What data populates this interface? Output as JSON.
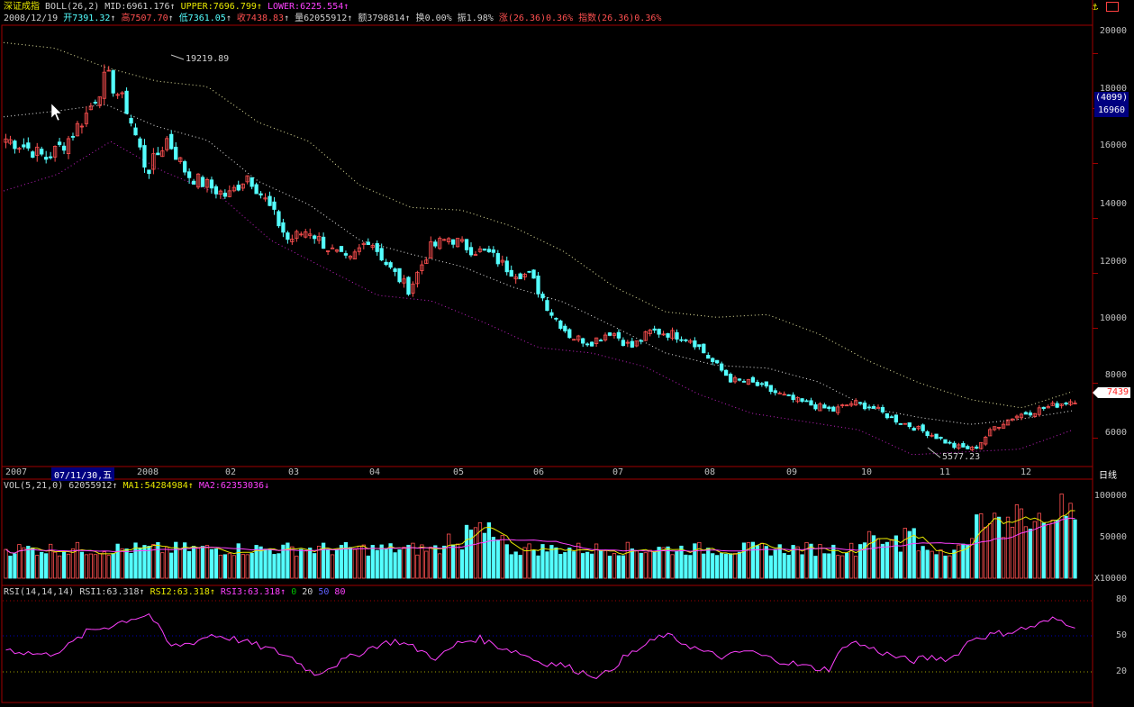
{
  "header": {
    "index_name": "深证成指",
    "boll_label": "BOLL(26,2)",
    "mid": "MID:6961.176",
    "upper": "UPPER:7696.799",
    "lower": "LOWER:6225.554",
    "arrow_up": "↑"
  },
  "info": {
    "date": "2008/12/19",
    "open": "开7391.32",
    "high": "高7507.70",
    "low": "低7361.05",
    "close": "收7438.83",
    "volume": "量62055912",
    "amount": "额3798814",
    "turnover": "换0.00%",
    "amplitude": "振1.98%",
    "change": "涨(26.36)0.36%",
    "index_change": "指数(26.36)0.36%"
  },
  "volume_header": {
    "label": "VOL(5,21,0)",
    "value": "62055912",
    "ma1": "MA1:54284984",
    "ma2": "MA2:62353036",
    "arrow_down": "↓"
  },
  "rsi_header": {
    "label": "RSI(14,14,14)",
    "rsi1": "RSI1:63.318",
    "rsi2": "RSI2:63.318",
    "rsi3": "RSI3:63.318",
    "levels": [
      "0",
      "20",
      "50",
      "80"
    ]
  },
  "price_axis": [
    "20000",
    "18000",
    "16000",
    "14000",
    "12000",
    "10000",
    "8000",
    "6000"
  ],
  "current_price_tag": "7439",
  "cursor_box": {
    "line1": "(4099)",
    "line2": "16960"
  },
  "x_axis_labels": [
    "2007",
    "07/11/30,五",
    "2008",
    "02",
    "03",
    "04",
    "05",
    "06",
    "07",
    "08",
    "09",
    "10",
    "11",
    "12",
    "日线"
  ],
  "annotations": {
    "high": "19219.89",
    "low": "5577.23"
  },
  "volume_axis": [
    "100000",
    "50000",
    "X10000"
  ],
  "rsi_axis": [
    "80",
    "50",
    "20"
  ],
  "icons": {
    "top_right": "anchor-icon"
  },
  "chart_data": {
    "type": "candlestick",
    "price_ylim": [
      5000,
      21000
    ],
    "x_months": [
      "2007-12",
      "2008-01",
      "2008-02",
      "2008-03",
      "2008-04",
      "2008-05",
      "2008-06",
      "2008-07",
      "2008-08",
      "2008-09",
      "2008-10",
      "2008-11",
      "2008-12"
    ],
    "close_approx": [
      16900,
      16600,
      16200,
      16800,
      17800,
      19200,
      18000,
      15700,
      16900,
      15600,
      15200,
      14800,
      15600,
      14500,
      13200,
      13600,
      12900,
      12400,
      13300,
      12200,
      11400,
      12900,
      13300,
      12900,
      12700,
      12100,
      11900,
      10600,
      9700,
      9500,
      9900,
      9300,
      9900,
      9800,
      9600,
      8800,
      8100,
      8000,
      7700,
      7400,
      7200,
      7000,
      7300,
      7100,
      6700,
      6400,
      6100,
      5700,
      5600,
      6400,
      6800,
      7000,
      7200,
      7400
    ],
    "boll_upper_approx": [
      20400,
      20200,
      19500,
      19000,
      18800,
      17500,
      16800,
      15200,
      14400,
      14300,
      13700,
      12800,
      11500,
      10600,
      10400,
      10500,
      9800,
      8800,
      8000,
      7400,
      7100,
      7700
    ],
    "boll_lower_approx": [
      15000,
      15600,
      16800,
      15700,
      14900,
      13200,
      12200,
      11200,
      11000,
      10200,
      9300,
      9100,
      8600,
      7600,
      6900,
      6600,
      6300,
      5400,
      5500,
      5600,
      6300
    ],
    "volume_series": [
      {
        "name": "MA1",
        "value": 54284984
      },
      {
        "name": "MA2",
        "value": 62353036
      }
    ],
    "volume_ylim": [
      0,
      110000
    ],
    "volume_unit": "X10000",
    "rsi_values_approx": [
      43,
      40,
      38,
      45,
      58,
      62,
      68,
      72,
      45,
      48,
      55,
      52,
      47,
      42,
      35,
      22,
      30,
      38,
      46,
      50,
      43,
      35,
      48,
      52,
      45,
      40,
      32,
      30,
      24,
      20,
      35,
      45,
      55,
      48,
      40,
      36,
      42,
      36,
      32,
      28,
      26,
      50,
      44,
      38,
      33,
      36,
      35,
      52,
      55,
      58,
      62,
      68,
      63
    ],
    "rsi_ylim": [
      0,
      90
    ],
    "rsi_levels": [
      20,
      50,
      80
    ]
  },
  "colors": {
    "up": "#ff5050",
    "down": "#54ffff",
    "boll_upper": "#e8e8a0",
    "boll_mid": "#e8e8e8",
    "boll_lower": "#c020c0",
    "ma1": "#e8e800",
    "ma2": "#ff40ff",
    "rsi": "#ff40ff",
    "frame": "#a00000",
    "cursor_box": "#000080"
  }
}
